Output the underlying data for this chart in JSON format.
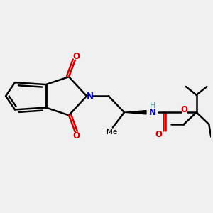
{
  "background_color": "#f0f0f0",
  "bond_color": "#000000",
  "nitrogen_color": "#0000cc",
  "oxygen_color": "#cc0000",
  "nh_color": "#4a9090",
  "lw": 1.8,
  "figsize": [
    3.0,
    3.0
  ],
  "dpi": 100,
  "xlim": [
    0,
    10
  ],
  "ylim": [
    0,
    10
  ]
}
